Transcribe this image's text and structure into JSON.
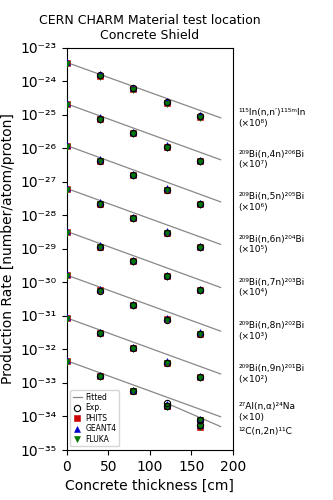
{
  "chart_data": {
    "type": "scatter",
    "title": "CERN CHARM Material test location",
    "subtitle": "Concrete Shield",
    "x_label": "Concrete thickness [cm]",
    "y_label": "Production Rate [number/atom/proton]",
    "log": "y",
    "legend": "lower left",
    "x": [
      0,
      40,
      80,
      120,
      160
    ],
    "xlim": [
      0,
      200
    ],
    "xticks": [
      0,
      50,
      100,
      150,
      200
    ],
    "ylim": [
      1e-35,
      1e-23
    ],
    "yticks": [
      {
        "value": 1e-35,
        "label": "10⁻³⁵"
      },
      {
        "value": 1e-34,
        "label": "10⁻³⁴"
      },
      {
        "value": 1e-33,
        "label": "10⁻³³"
      },
      {
        "value": 1e-32,
        "label": "10⁻³²"
      },
      {
        "value": 1e-31,
        "label": "10⁻³¹"
      },
      {
        "value": 1e-30,
        "label": "10⁻³⁰"
      },
      {
        "value": 1e-29,
        "label": "10⁻²⁹"
      },
      {
        "value": 1e-28,
        "label": "10⁻²⁸"
      },
      {
        "value": 1e-27,
        "label": "10⁻²⁷"
      },
      {
        "value": 1e-26,
        "label": "10⁻²⁶"
      },
      {
        "value": 1e-25,
        "label": "10⁻²⁵"
      },
      {
        "value": 1e-24,
        "label": "10⁻²⁴"
      },
      {
        "value": 1e-23,
        "label": "10⁻²³"
      }
    ],
    "series": [
      {
        "name": "Fitted",
        "type": "line",
        "line_style": "solid",
        "color": "#888888"
      },
      {
        "name": "Exp.",
        "marker": "open_circle",
        "color": "#000000"
      },
      {
        "name": "PHITS",
        "marker": "square",
        "color": "#cc0000"
      },
      {
        "name": "GEANT4",
        "marker": "triangle_up",
        "color": "#0000cc"
      },
      {
        "name": "FLUKA",
        "marker": "triangle_down",
        "color": "#007700"
      }
    ],
    "groups": [
      {
        "annotation": [
          "¹¹⁵In(n,n′)¹¹⁵ᵐIn",
          "(×10⁸)"
        ],
        "fit": {
          "x": [
            0,
            185
          ],
          "values": [
            3.6e-24,
            8e-26
          ]
        },
        "values": {
          "Exp.": [
            null,
            1.5e-24,
            6e-25,
            2.3e-25,
            8.8e-26
          ],
          "PHITS": [
            3.5e-24,
            1.45e-24,
            5.8e-25,
            2.25e-25,
            8.5e-26
          ],
          "GEANT4": [
            3.8e-24,
            1.6e-24,
            6.3e-25,
            2.5e-25,
            9.5e-26
          ],
          "FLUKA": [
            3.3e-24,
            1.35e-24,
            5.4e-25,
            2.1e-25,
            8e-26
          ]
        }
      },
      {
        "annotation": [
          "²⁰⁹Bi(n,4n)²⁰⁶Bi",
          "(×10⁷)"
        ],
        "fit": {
          "x": [
            0,
            185
          ],
          "values": [
            2.1e-25,
            4.5e-27
          ]
        },
        "values": {
          "Exp.": [
            null,
            7.5e-26,
            2.8e-26,
            1.05e-26,
            4e-27
          ],
          "PHITS": [
            2e-25,
            7.5e-26,
            2.8e-26,
            1.1e-26,
            4.1e-27
          ],
          "GEANT4": [
            2.2e-25,
            8.2e-26,
            3.1e-26,
            1.2e-26,
            4.5e-27
          ],
          "FLUKA": [
            1.9e-25,
            7e-26,
            2.6e-26,
            1e-26,
            3.8e-27
          ]
        }
      },
      {
        "annotation": [
          "²⁰⁹Bi(n,5n)²⁰⁵Bi",
          "(×10⁶)"
        ],
        "fit": {
          "x": [
            0,
            185
          ],
          "values": [
            1.2e-26,
            2.5e-28
          ]
        },
        "values": {
          "Exp.": [
            null,
            4.2e-27,
            1.55e-27,
            5.8e-28,
            2.1e-28
          ],
          "PHITS": [
            1.15e-26,
            4.2e-27,
            1.55e-27,
            5.8e-28,
            2.1e-28
          ],
          "GEANT4": [
            1.25e-26,
            4.6e-27,
            1.7e-27,
            6.3e-28,
            2.3e-28
          ],
          "FLUKA": [
            1.1e-26,
            4e-27,
            1.48e-27,
            5.5e-28,
            2e-28
          ]
        }
      },
      {
        "annotation": [
          "²⁰⁹Bi(n,6n)²⁰⁴Bi",
          "(×10⁵)"
        ],
        "fit": {
          "x": [
            0,
            185
          ],
          "values": [
            6.3e-28,
            1.35e-29
          ]
        },
        "values": {
          "Exp.": [
            null,
            2.2e-28,
            8e-29,
            3e-29,
            1.12e-29
          ],
          "PHITS": [
            6e-28,
            2.2e-28,
            8e-29,
            3e-29,
            1.1e-29
          ],
          "GEANT4": [
            6.5e-28,
            2.4e-28,
            8.8e-29,
            3.3e-29,
            1.2e-29
          ],
          "FLUKA": [
            5.7e-28,
            2.1e-28,
            7.7e-29,
            2.9e-29,
            1.05e-29
          ]
        }
      },
      {
        "annotation": [
          "²⁰⁹Bi(n,7n)²⁰³Bi",
          "(×10⁴)"
        ],
        "fit": {
          "x": [
            0,
            185
          ],
          "values": [
            3.3e-29,
            7e-31
          ]
        },
        "values": {
          "Exp.": [
            null,
            1.15e-29,
            4.2e-30,
            1.55e-30,
            5.7e-31
          ],
          "PHITS": [
            3.2e-29,
            1.15e-29,
            4.2e-30,
            1.55e-30,
            5.7e-31
          ],
          "GEANT4": [
            3.5e-29,
            1.25e-29,
            4.6e-30,
            1.7e-30,
            6.2e-31
          ],
          "FLUKA": [
            3e-29,
            1.1e-29,
            4e-30,
            1.48e-30,
            5.4e-31
          ]
        }
      },
      {
        "annotation": [
          "²⁰⁹Bi(n,8n)²⁰²Bi",
          "(×10³)"
        ],
        "fit": {
          "x": [
            0,
            185
          ],
          "values": [
            1.65e-30,
            3.5e-32
          ]
        },
        "values": {
          "Exp.": [
            null,
            5.5e-31,
            2.05e-31,
            7.6e-32,
            2.85e-32
          ],
          "PHITS": [
            1.6e-30,
            5.8e-31,
            2.1e-31,
            7.8e-32,
            2.9e-32
          ],
          "GEANT4": [
            1.75e-30,
            6.3e-31,
            2.3e-31,
            8.5e-32,
            3.2e-32
          ],
          "FLUKA": [
            1.5e-30,
            5.5e-31,
            2e-31,
            7.5e-32,
            2.8e-32
          ]
        }
      },
      {
        "annotation": [
          "²⁰⁹Bi(n,9n)²⁰¹Bi",
          "(×10²)"
        ],
        "fit": {
          "x": [
            0,
            185
          ],
          "values": [
            8.7e-32,
            1.85e-33
          ]
        },
        "values": {
          "Exp.": [
            null,
            3e-32,
            1.1e-32,
            4e-33,
            1.5e-33
          ],
          "PHITS": [
            8.5e-32,
            3e-32,
            1.1e-32,
            4e-33,
            1.5e-33
          ],
          "GEANT4": [
            9.2e-32,
            3.3e-32,
            1.2e-32,
            4.4e-33,
            1.6e-33
          ],
          "FLUKA": [
            8e-32,
            2.9e-32,
            1.05e-32,
            3.9e-33,
            1.45e-33
          ]
        }
      },
      {
        "annotation": [
          "²⁷Al(n,α)²⁴Na",
          "(×10)"
        ],
        "fit": {
          "x": [
            0,
            185
          ],
          "values": [
            4.6e-33,
            9.8e-35
          ]
        },
        "values": {
          "Exp.": [
            null,
            1.6e-33,
            5.8e-34,
            2.1e-34,
            7.8e-35
          ],
          "PHITS": [
            4.5e-33,
            1.6e-33,
            5.8e-34,
            2.1e-34,
            7.8e-35
          ],
          "GEANT4": [
            4.9e-33,
            1.75e-33,
            6.3e-34,
            2.3e-34,
            8.5e-35
          ],
          "FLUKA": [
            4.3e-33,
            1.55e-33,
            5.6e-34,
            2.05e-34,
            7.6e-35
          ]
        }
      },
      {
        "annotation": [
          "¹²C(n,2n)¹¹C"
        ],
        "fit": {
          "x": [
            120,
            185
          ],
          "values": [
            2.5e-34,
            5e-35
          ]
        },
        "values": {
          "Exp.": [
            null,
            null,
            null,
            2.5e-34,
            5.5e-35
          ],
          "PHITS": [
            null,
            null,
            null,
            2e-34,
            5e-35
          ],
          "GEANT4": [
            null,
            null,
            null,
            2.2e-34,
            5.5e-35
          ],
          "FLUKA": [
            null,
            null,
            null,
            1.9e-34,
            4.8e-35
          ]
        }
      }
    ]
  }
}
